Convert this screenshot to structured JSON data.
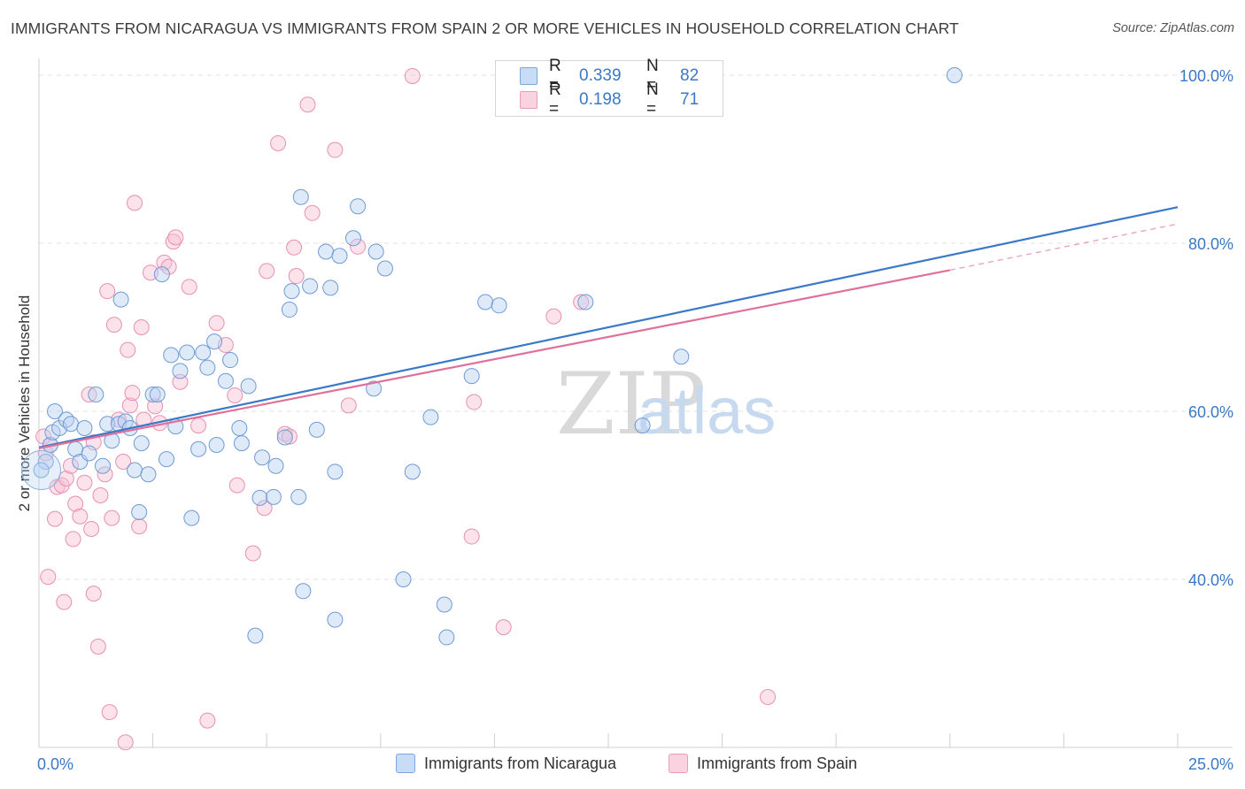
{
  "title": "IMMIGRANTS FROM NICARAGUA VS IMMIGRANTS FROM SPAIN 2 OR MORE VEHICLES IN HOUSEHOLD CORRELATION CHART",
  "source": "Source: ZipAtlas.com",
  "watermark": {
    "zip": "ZIP",
    "atlas": "atlas"
  },
  "legend_top": {
    "rows": [
      {
        "r_label": "R =",
        "r_value": "0.339",
        "n_label": "N =",
        "n_value": "82",
        "color": "#a9c6ee"
      },
      {
        "r_label": "R =",
        "r_value": "0.198",
        "n_label": "N =",
        "n_value": "71",
        "color": "#f5b8cc"
      }
    ]
  },
  "legend_bottom": [
    {
      "label": "Immigrants from Nicaragua",
      "color": "#a9c6ee"
    },
    {
      "label": "Immigrants from Spain",
      "color": "#f5b8cc"
    }
  ],
  "chart_data": {
    "type": "scatter",
    "title": "IMMIGRANTS FROM NICARAGUA VS IMMIGRANTS FROM SPAIN 2 OR MORE VEHICLES IN HOUSEHOLD CORRELATION CHART",
    "xlabel": "",
    "ylabel": "2 or more Vehicles in Household",
    "xlim": [
      0,
      25
    ],
    "ylim": [
      20,
      102
    ],
    "x_tick_labels": [
      "0.0%",
      "25.0%"
    ],
    "y_ticks": [
      40,
      60,
      80,
      100
    ],
    "y_tick_labels": [
      "40.0%",
      "60.0%",
      "80.0%",
      "100.0%"
    ],
    "grid": true,
    "colors": {
      "nicaragua": "#3a78c8",
      "spain": "#e0709b",
      "axis_text": "#3a78c8"
    },
    "series": [
      {
        "name": "Immigrants from Nicaragua",
        "r": 0.339,
        "n": 82,
        "trend": {
          "x0": 0,
          "y0": 55.7,
          "x1": 25,
          "y1": 84.3
        },
        "points": [
          [
            0.15,
            54
          ],
          [
            0.25,
            56
          ],
          [
            0.3,
            57.5
          ],
          [
            0.35,
            60
          ],
          [
            0.45,
            58
          ],
          [
            0.6,
            59
          ],
          [
            0.7,
            58.5
          ],
          [
            0.8,
            55.5
          ],
          [
            0.9,
            54
          ],
          [
            1.0,
            58
          ],
          [
            1.1,
            55
          ],
          [
            1.25,
            62
          ],
          [
            1.4,
            53.5
          ],
          [
            1.5,
            58.5
          ],
          [
            1.6,
            56.5
          ],
          [
            1.75,
            58.5
          ],
          [
            1.8,
            73.3
          ],
          [
            1.9,
            58.8
          ],
          [
            2.0,
            58
          ],
          [
            2.1,
            53
          ],
          [
            2.2,
            48
          ],
          [
            2.25,
            56.2
          ],
          [
            2.4,
            52.5
          ],
          [
            2.5,
            62
          ],
          [
            2.6,
            62
          ],
          [
            2.7,
            76.3
          ],
          [
            2.8,
            54.3
          ],
          [
            2.9,
            66.7
          ],
          [
            3.0,
            58.2
          ],
          [
            3.1,
            64.8
          ],
          [
            3.25,
            67
          ],
          [
            3.35,
            47.3
          ],
          [
            3.5,
            55.5
          ],
          [
            3.6,
            67
          ],
          [
            3.7,
            65.2
          ],
          [
            3.9,
            56
          ],
          [
            3.85,
            68.3
          ],
          [
            4.1,
            63.6
          ],
          [
            4.2,
            66.1
          ],
          [
            4.4,
            58
          ],
          [
            4.45,
            56.2
          ],
          [
            4.6,
            63
          ],
          [
            4.75,
            33.3
          ],
          [
            4.85,
            49.7
          ],
          [
            4.9,
            54.5
          ],
          [
            5.15,
            49.8
          ],
          [
            5.2,
            53.5
          ],
          [
            5.4,
            56.9
          ],
          [
            5.5,
            72.1
          ],
          [
            5.55,
            74.3
          ],
          [
            5.7,
            49.8
          ],
          [
            5.75,
            85.5
          ],
          [
            5.8,
            38.6
          ],
          [
            5.95,
            74.9
          ],
          [
            6.1,
            57.8
          ],
          [
            6.3,
            79
          ],
          [
            6.4,
            74.7
          ],
          [
            6.5,
            52.8
          ],
          [
            6.5,
            35.2
          ],
          [
            6.6,
            78.5
          ],
          [
            6.9,
            80.6
          ],
          [
            7.0,
            84.4
          ],
          [
            7.35,
            62.7
          ],
          [
            7.4,
            79
          ],
          [
            7.6,
            77
          ],
          [
            8.0,
            40
          ],
          [
            8.2,
            52.8
          ],
          [
            8.6,
            59.3
          ],
          [
            8.9,
            37
          ],
          [
            8.95,
            33.1
          ],
          [
            9.5,
            64.2
          ],
          [
            9.8,
            73
          ],
          [
            10.1,
            72.6
          ],
          [
            12.0,
            73
          ],
          [
            13.25,
            58.3
          ],
          [
            14.1,
            66.5
          ],
          [
            20.1,
            100
          ],
          [
            0.05,
            53
          ]
        ]
      },
      {
        "name": "Immigrants from Spain",
        "r": 0.198,
        "n": 71,
        "trend": {
          "x0": 0,
          "y0": 55.6,
          "x1": 20,
          "y1": 76.8,
          "dashed_to": {
            "x": 25,
            "y": 82.3
          }
        },
        "points": [
          [
            0.1,
            57
          ],
          [
            0.15,
            55
          ],
          [
            0.2,
            40.3
          ],
          [
            0.25,
            56
          ],
          [
            0.35,
            47.2
          ],
          [
            0.4,
            51
          ],
          [
            0.5,
            51.2
          ],
          [
            0.55,
            37.3
          ],
          [
            0.6,
            52
          ],
          [
            0.7,
            53.5
          ],
          [
            0.75,
            44.8
          ],
          [
            0.8,
            49
          ],
          [
            0.9,
            47.5
          ],
          [
            1.0,
            51.5
          ],
          [
            1.1,
            62
          ],
          [
            1.15,
            46
          ],
          [
            1.2,
            38.3
          ],
          [
            1.2,
            56.3
          ],
          [
            1.3,
            32
          ],
          [
            1.35,
            50
          ],
          [
            1.45,
            52.5
          ],
          [
            1.5,
            74.3
          ],
          [
            1.55,
            24.2
          ],
          [
            1.6,
            47.3
          ],
          [
            1.65,
            70.3
          ],
          [
            1.75,
            59
          ],
          [
            1.85,
            54
          ],
          [
            1.9,
            20.6
          ],
          [
            1.95,
            67.3
          ],
          [
            2.0,
            60.7
          ],
          [
            2.05,
            62.2
          ],
          [
            2.1,
            84.8
          ],
          [
            2.2,
            46.3
          ],
          [
            2.25,
            70
          ],
          [
            2.3,
            59
          ],
          [
            2.45,
            76.5
          ],
          [
            2.55,
            60.6
          ],
          [
            2.65,
            58.6
          ],
          [
            2.75,
            77.7
          ],
          [
            2.85,
            77.2
          ],
          [
            2.95,
            80.2
          ],
          [
            3.0,
            80.7
          ],
          [
            3.1,
            63.5
          ],
          [
            3.3,
            74.8
          ],
          [
            3.5,
            58.3
          ],
          [
            3.7,
            23.2
          ],
          [
            3.9,
            70.5
          ],
          [
            4.1,
            67.9
          ],
          [
            4.3,
            61.9
          ],
          [
            4.35,
            51.2
          ],
          [
            4.7,
            43.1
          ],
          [
            4.95,
            48.5
          ],
          [
            5.0,
            76.7
          ],
          [
            5.25,
            91.9
          ],
          [
            5.4,
            57.3
          ],
          [
            5.5,
            57
          ],
          [
            5.6,
            79.5
          ],
          [
            5.65,
            76.1
          ],
          [
            5.9,
            96.5
          ],
          [
            6.0,
            83.6
          ],
          [
            6.5,
            91.1
          ],
          [
            6.8,
            60.7
          ],
          [
            7.0,
            79.6
          ],
          [
            8.2,
            99.9
          ],
          [
            9.5,
            45.1
          ],
          [
            9.55,
            61.1
          ],
          [
            10.2,
            34.3
          ],
          [
            11.3,
            71.3
          ],
          [
            11.9,
            73
          ],
          [
            16.0,
            26
          ]
        ]
      }
    ]
  }
}
